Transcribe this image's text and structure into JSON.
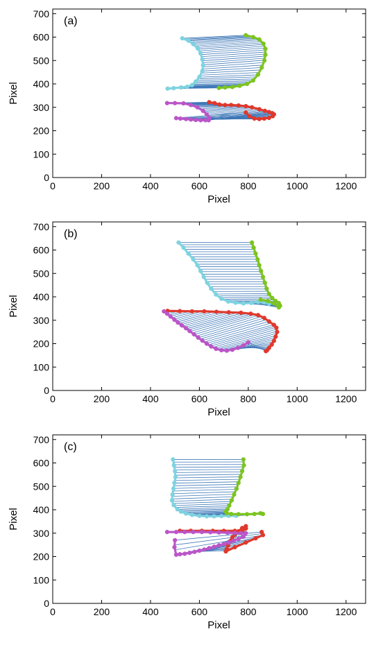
{
  "colors": {
    "connector": "#3f78b8",
    "cyan": "#7fd3e0",
    "green": "#7cc420",
    "red": "#e0382c",
    "magenta": "#bb55c8",
    "axis": "#000000"
  },
  "chart_data": [
    {
      "type": "scatter",
      "label": "(a)",
      "xlabel": "Pixel",
      "ylabel": "Pixel",
      "xlim": [
        0,
        1280
      ],
      "ylim": [
        0,
        720
      ],
      "xticks": [
        0,
        200,
        400,
        600,
        800,
        1000,
        1200
      ],
      "yticks": [
        0,
        100,
        200,
        300,
        400,
        500,
        600,
        700
      ],
      "grid": false,
      "series": [
        {
          "color": "cyan",
          "points": [
            [
              530,
              595
            ],
            [
              555,
              585
            ],
            [
              575,
              570
            ],
            [
              593,
              552
            ],
            [
              605,
              530
            ],
            [
              612,
              505
            ],
            [
              615,
              480
            ],
            [
              612,
              455
            ],
            [
              600,
              430
            ],
            [
              585,
              410
            ],
            [
              570,
              395
            ],
            [
              550,
              388
            ],
            [
              525,
              385
            ],
            [
              495,
              382
            ],
            [
              470,
              380
            ]
          ]
        },
        {
          "color": "green",
          "points": [
            [
              790,
              608
            ],
            [
              820,
              600
            ],
            [
              845,
              590
            ],
            [
              862,
              572
            ],
            [
              870,
              550
            ],
            [
              870,
              525
            ],
            [
              866,
              500
            ],
            [
              855,
              470
            ],
            [
              840,
              440
            ],
            [
              820,
              415
            ],
            [
              795,
              400
            ],
            [
              765,
              392
            ],
            [
              735,
              387
            ],
            [
              705,
              385
            ],
            [
              680,
              383
            ]
          ]
        },
        {
          "color": "red",
          "points": [
            [
              640,
              322
            ],
            [
              662,
              318
            ],
            [
              682,
              312
            ],
            [
              705,
              310
            ],
            [
              730,
              310
            ],
            [
              760,
              308
            ],
            [
              790,
              305
            ],
            [
              815,
              300
            ],
            [
              845,
              292
            ],
            [
              868,
              285
            ],
            [
              885,
              280
            ],
            [
              898,
              275
            ],
            [
              905,
              270
            ],
            [
              900,
              262
            ],
            [
              885,
              255
            ],
            [
              865,
              252
            ],
            [
              845,
              250
            ],
            [
              825,
              252
            ],
            [
              805,
              262
            ],
            [
              790,
              278
            ]
          ]
        },
        {
          "color": "magenta",
          "points": [
            [
              468,
              318
            ],
            [
              500,
              318
            ],
            [
              535,
              317
            ],
            [
              565,
              310
            ],
            [
              592,
              300
            ],
            [
              615,
              285
            ],
            [
              630,
              270
            ],
            [
              640,
              255
            ],
            [
              638,
              245
            ],
            [
              625,
              245
            ],
            [
              605,
              245
            ],
            [
              585,
              246
            ],
            [
              565,
              248
            ],
            [
              545,
              250
            ],
            [
              522,
              252
            ],
            [
              505,
              254
            ]
          ]
        }
      ],
      "connectors": [
        [
          "cyan",
          "green"
        ],
        [
          "magenta",
          "red"
        ]
      ]
    },
    {
      "type": "scatter",
      "label": "(b)",
      "xlabel": "Pixel",
      "ylabel": "Pixel",
      "xlim": [
        0,
        1280
      ],
      "ylim": [
        0,
        720
      ],
      "xticks": [
        0,
        200,
        400,
        600,
        800,
        1000,
        1200
      ],
      "yticks": [
        0,
        100,
        200,
        300,
        400,
        500,
        600,
        700
      ],
      "grid": false,
      "series": [
        {
          "color": "cyan",
          "points": [
            [
              515,
              632
            ],
            [
              535,
              610
            ],
            [
              555,
              585
            ],
            [
              575,
              560
            ],
            [
              592,
              535
            ],
            [
              605,
              510
            ],
            [
              618,
              485
            ],
            [
              632,
              460
            ],
            [
              648,
              435
            ],
            [
              668,
              410
            ],
            [
              690,
              392
            ],
            [
              718,
              380
            ],
            [
              748,
              375
            ],
            [
              780,
              372
            ],
            [
              812,
              374
            ],
            [
              840,
              378
            ],
            [
              865,
              376
            ],
            [
              885,
              370
            ]
          ]
        },
        {
          "color": "green",
          "points": [
            [
              815,
              632
            ],
            [
              822,
              610
            ],
            [
              830,
              585
            ],
            [
              838,
              560
            ],
            [
              845,
              535
            ],
            [
              852,
              510
            ],
            [
              860,
              485
            ],
            [
              868,
              460
            ],
            [
              875,
              435
            ],
            [
              885,
              412
            ],
            [
              898,
              395
            ],
            [
              912,
              382
            ],
            [
              925,
              373
            ],
            [
              930,
              362
            ],
            [
              925,
              355
            ],
            [
              905,
              372
            ],
            [
              880,
              382
            ],
            [
              850,
              388
            ]
          ]
        },
        {
          "color": "red",
          "points": [
            [
              470,
              340
            ],
            [
              520,
              339
            ],
            [
              570,
              338
            ],
            [
              620,
              338
            ],
            [
              670,
              336
            ],
            [
              720,
              334
            ],
            [
              770,
              332
            ],
            [
              810,
              328
            ],
            [
              840,
              322
            ],
            [
              865,
              310
            ],
            [
              885,
              295
            ],
            [
              905,
              280
            ],
            [
              915,
              268
            ],
            [
              918,
              250
            ],
            [
              912,
              230
            ],
            [
              905,
              212
            ],
            [
              896,
              196
            ],
            [
              885,
              182
            ],
            [
              877,
              172
            ],
            [
              872,
              168
            ]
          ]
        },
        {
          "color": "magenta",
          "points": [
            [
              455,
              338
            ],
            [
              468,
              328
            ],
            [
              482,
              316
            ],
            [
              498,
              302
            ],
            [
              512,
              290
            ],
            [
              528,
              278
            ],
            [
              545,
              266
            ],
            [
              560,
              254
            ],
            [
              578,
              240
            ],
            [
              595,
              226
            ],
            [
              612,
              213
            ],
            [
              630,
              200
            ],
            [
              648,
              188
            ],
            [
              668,
              178
            ],
            [
              690,
              172
            ],
            [
              712,
              170
            ],
            [
              735,
              174
            ],
            [
              758,
              182
            ],
            [
              780,
              193
            ],
            [
              800,
              206
            ]
          ]
        }
      ],
      "connectors": [
        [
          "cyan",
          "green"
        ],
        [
          "magenta",
          "red"
        ]
      ]
    },
    {
      "type": "scatter",
      "label": "(c)",
      "xlabel": "Pixel",
      "ylabel": "Pixel",
      "xlim": [
        0,
        1280
      ],
      "ylim": [
        0,
        720
      ],
      "xticks": [
        0,
        200,
        400,
        600,
        800,
        1000,
        1200
      ],
      "yticks": [
        0,
        100,
        200,
        300,
        400,
        500,
        600,
        700
      ],
      "grid": false,
      "series": [
        {
          "color": "cyan",
          "points": [
            [
              492,
              615
            ],
            [
              496,
              590
            ],
            [
              500,
              565
            ],
            [
              502,
              540
            ],
            [
              498,
              515
            ],
            [
              494,
              490
            ],
            [
              490,
              465
            ],
            [
              488,
              440
            ],
            [
              495,
              420
            ],
            [
              510,
              402
            ],
            [
              525,
              392
            ],
            [
              545,
              384
            ],
            [
              570,
              378
            ],
            [
              600,
              374
            ],
            [
              630,
              372
            ],
            [
              660,
              372
            ],
            [
              690,
              373
            ],
            [
              720,
              374
            ],
            [
              750,
              374
            ]
          ]
        },
        {
          "color": "green",
          "points": [
            [
              780,
              615
            ],
            [
              782,
              590
            ],
            [
              775,
              565
            ],
            [
              768,
              540
            ],
            [
              760,
              515
            ],
            [
              752,
              490
            ],
            [
              742,
              465
            ],
            [
              732,
              440
            ],
            [
              722,
              418
            ],
            [
              715,
              402
            ],
            [
              708,
              392
            ],
            [
              712,
              385
            ],
            [
              730,
              382
            ],
            [
              760,
              381
            ],
            [
              795,
              381
            ],
            [
              825,
              382
            ],
            [
              850,
              385
            ],
            [
              860,
              382
            ]
          ]
        },
        {
          "color": "red",
          "points": [
            [
              520,
              310
            ],
            [
              565,
              310
            ],
            [
              610,
              310
            ],
            [
              655,
              310
            ],
            [
              700,
              310
            ],
            [
              745,
              310
            ],
            [
              775,
              310
            ],
            [
              790,
              320
            ],
            [
              790,
              330
            ],
            [
              775,
              322
            ],
            [
              760,
              308
            ],
            [
              745,
              294
            ],
            [
              735,
              282
            ],
            [
              725,
              264
            ],
            [
              718,
              248
            ],
            [
              712,
              233
            ],
            [
              708,
              222
            ],
            [
              745,
              240
            ],
            [
              790,
              260
            ],
            [
              830,
              278
            ],
            [
              860,
              292
            ],
            [
              855,
              305
            ]
          ]
        },
        {
          "color": "magenta",
          "points": [
            [
              468,
              305
            ],
            [
              505,
              305
            ],
            [
              540,
              305
            ],
            [
              575,
              305
            ],
            [
              610,
              305
            ],
            [
              645,
              304
            ],
            [
              680,
              303
            ],
            [
              715,
              302
            ],
            [
              745,
              301
            ],
            [
              770,
              300
            ],
            [
              790,
              300
            ],
            [
              780,
              285
            ],
            [
              760,
              275
            ],
            [
              740,
              268
            ],
            [
              720,
              260
            ],
            [
              700,
              254
            ],
            [
              680,
              248
            ],
            [
              660,
              242
            ],
            [
              640,
              236
            ],
            [
              620,
              230
            ],
            [
              600,
              225
            ],
            [
              580,
              220
            ],
            [
              560,
              216
            ],
            [
              540,
              212
            ],
            [
              520,
              210
            ],
            [
              505,
              208
            ],
            [
              498,
              240
            ],
            [
              500,
              270
            ]
          ]
        }
      ],
      "connectors": [
        [
          "cyan",
          "green"
        ],
        [
          "magenta",
          "red"
        ]
      ]
    }
  ]
}
